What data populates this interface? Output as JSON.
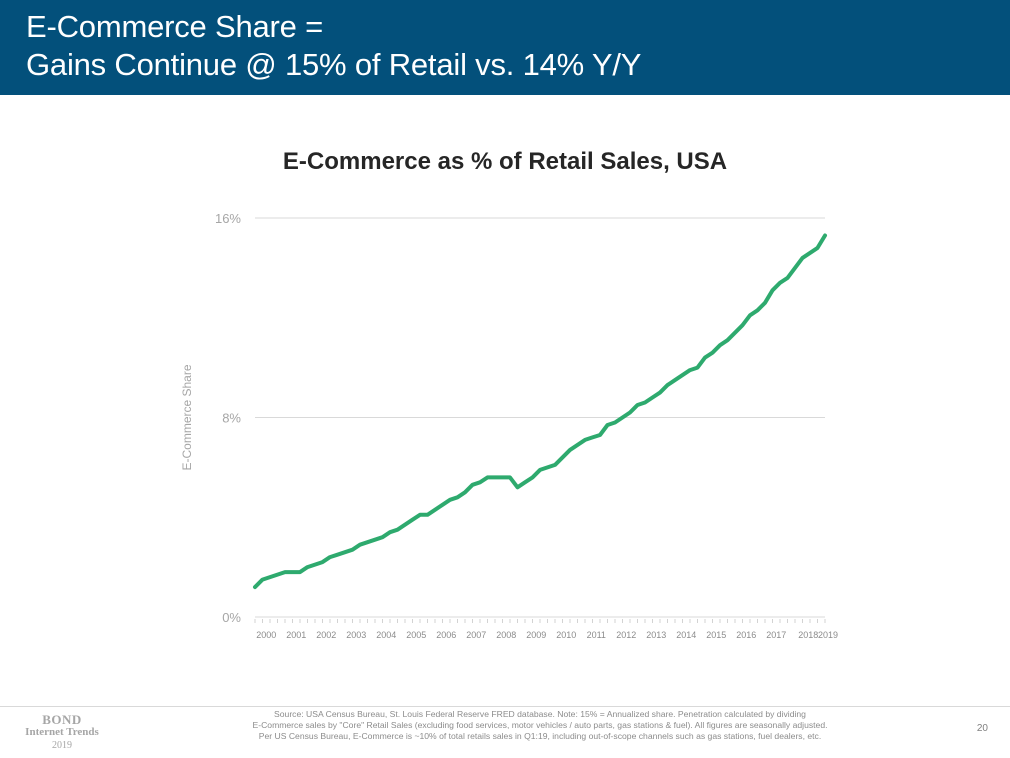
{
  "header": {
    "line1": "E-Commerce Share =",
    "line2": "Gains Continue @ 15% of Retail vs. 14% Y/Y"
  },
  "chart_data": {
    "type": "line",
    "title": "E-Commerce as % of Retail Sales, USA",
    "xlabel": "",
    "ylabel": "E-Commerce Share",
    "ylim": [
      0,
      16
    ],
    "yticks": [
      "0%",
      "8%",
      "16%"
    ],
    "grid": true,
    "year_labels": [
      "2000",
      "2001",
      "2002",
      "2003",
      "2004",
      "2005",
      "2006",
      "2007",
      "2008",
      "2009",
      "2010",
      "2011",
      "2012",
      "2013",
      "2014",
      "2015",
      "2016",
      "2017",
      "2018",
      "2019"
    ],
    "start": "Q1 2000",
    "series": [
      {
        "name": "E-Commerce Share",
        "color": "#2eaa6e",
        "values": [
          1.2,
          1.5,
          1.6,
          1.7,
          1.8,
          1.8,
          1.8,
          2.0,
          2.1,
          2.2,
          2.4,
          2.5,
          2.6,
          2.7,
          2.9,
          3.0,
          3.1,
          3.2,
          3.4,
          3.5,
          3.7,
          3.9,
          4.1,
          4.1,
          4.3,
          4.5,
          4.7,
          4.8,
          5.0,
          5.3,
          5.4,
          5.6,
          5.6,
          5.6,
          5.6,
          5.2,
          5.4,
          5.6,
          5.9,
          6.0,
          6.1,
          6.4,
          6.7,
          6.9,
          7.1,
          7.2,
          7.3,
          7.7,
          7.8,
          8.0,
          8.2,
          8.5,
          8.6,
          8.8,
          9.0,
          9.3,
          9.5,
          9.7,
          9.9,
          10.0,
          10.4,
          10.6,
          10.9,
          11.1,
          11.4,
          11.7,
          12.1,
          12.3,
          12.6,
          13.1,
          13.4,
          13.6,
          14.0,
          14.4,
          14.6,
          14.8,
          15.3
        ]
      }
    ]
  },
  "footer": {
    "logo_line1": "BOND",
    "logo_line2": "Internet Trends",
    "logo_line3": "2019",
    "source_line1": "Source: USA Census Bureau, St. Louis Federal Reserve FRED database. Note: 15% = Annualized share. Penetration calculated by dividing",
    "source_line2": "E-Commerce sales by \"Core\" Retail Sales (excluding food services, motor vehicles / auto parts, gas stations & fuel). All figures are seasonally adjusted.",
    "source_line3": "Per US Census Bureau, E-Commerce is ~10% of total retails sales in Q1:19, including out-of-scope channels such as gas stations, fuel dealers, etc.",
    "page_number": "20"
  }
}
